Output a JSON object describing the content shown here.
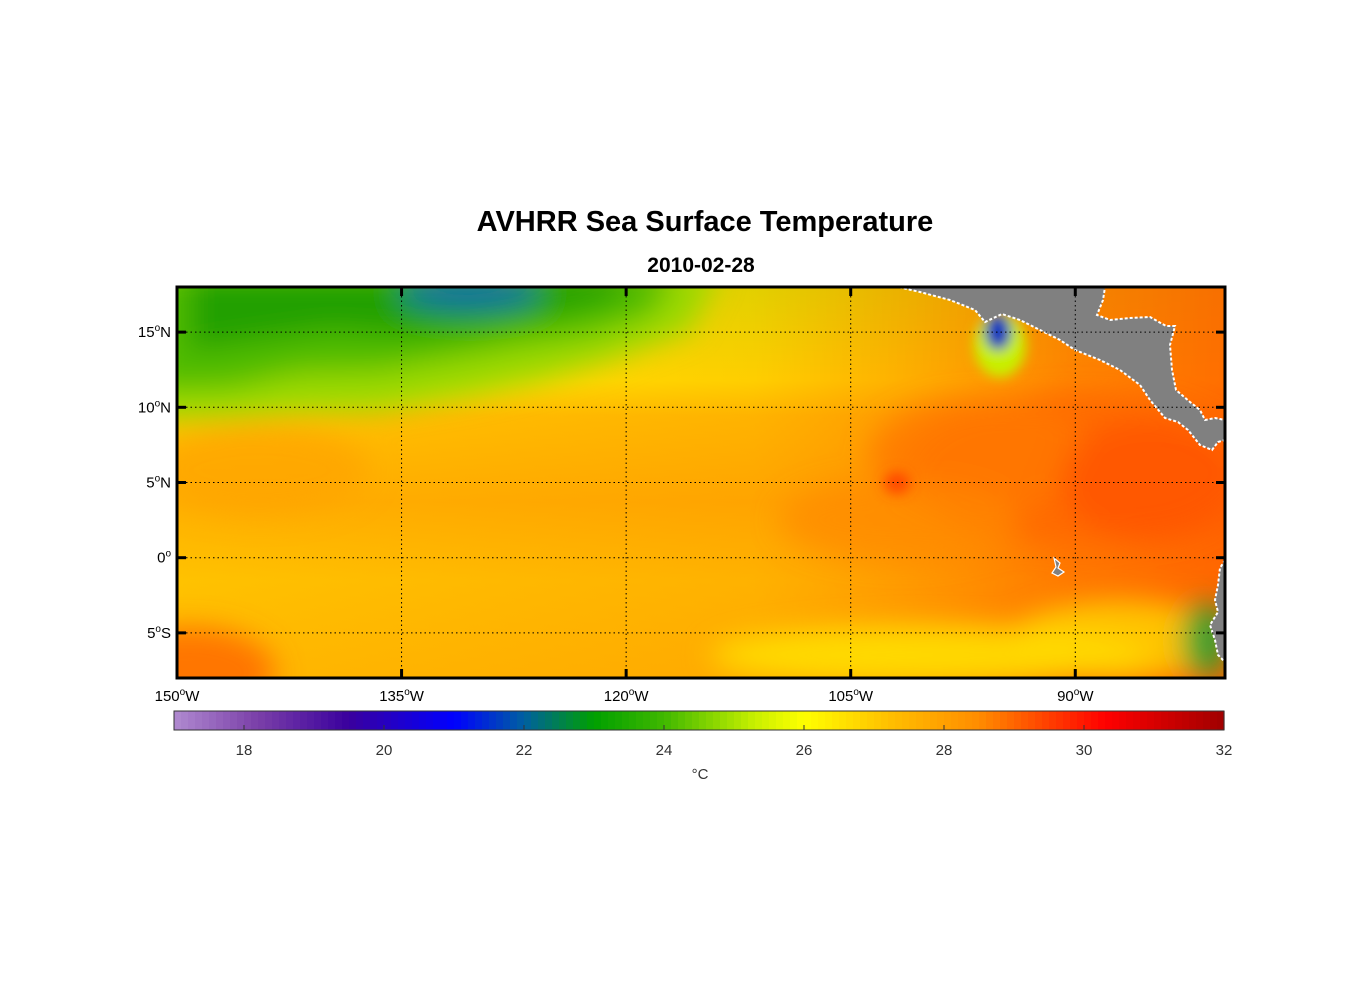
{
  "title": "AVHRR Sea Surface Temperature",
  "date": "2010-02-28",
  "map": {
    "lon_range": [
      -150,
      -80
    ],
    "lat_range": [
      -8,
      18
    ],
    "lon_ticks": [
      {
        "value": -150,
        "deg": "150",
        "hemi": "W"
      },
      {
        "value": -135,
        "deg": "135",
        "hemi": "W"
      },
      {
        "value": -120,
        "deg": "120",
        "hemi": "W"
      },
      {
        "value": -105,
        "deg": "105",
        "hemi": "W"
      },
      {
        "value": -90,
        "deg": "90",
        "hemi": "W"
      }
    ],
    "lat_ticks": [
      {
        "value": 15,
        "deg": "15",
        "hemi": "N"
      },
      {
        "value": 10,
        "deg": "10",
        "hemi": "N"
      },
      {
        "value": 5,
        "deg": "5",
        "hemi": "N"
      },
      {
        "value": 0,
        "deg": "0",
        "hemi": ""
      },
      {
        "value": -5,
        "deg": "5",
        "hemi": "S"
      }
    ],
    "gridlines": "dotted",
    "land_color": "#808080",
    "coastline_color": "#ffffff"
  },
  "colorbar": {
    "range": [
      17,
      32
    ],
    "ticks": [
      "18",
      "20",
      "22",
      "24",
      "26",
      "28",
      "30",
      "32"
    ],
    "unit": "°C",
    "stops": [
      {
        "value": 17,
        "color": "#b08ad0"
      },
      {
        "value": 18.2,
        "color": "#7a3fa8"
      },
      {
        "value": 19.5,
        "color": "#3a009e"
      },
      {
        "value": 21,
        "color": "#0000ff"
      },
      {
        "value": 22,
        "color": "#0060a0"
      },
      {
        "value": 23,
        "color": "#00a000"
      },
      {
        "value": 24,
        "color": "#40b800"
      },
      {
        "value": 25.3,
        "color": "#c8f000"
      },
      {
        "value": 26,
        "color": "#ffff00"
      },
      {
        "value": 27.2,
        "color": "#ffc000"
      },
      {
        "value": 28.5,
        "color": "#ff8c00"
      },
      {
        "value": 30.3,
        "color": "#ff0000"
      },
      {
        "value": 32,
        "color": "#a00000"
      }
    ]
  }
}
